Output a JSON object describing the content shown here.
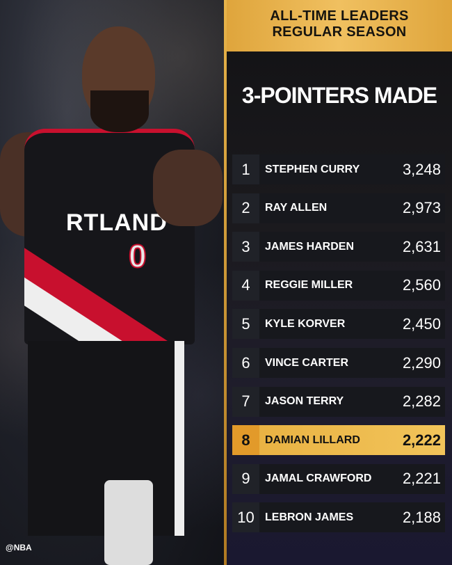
{
  "header": {
    "line1": "ALL-TIME LEADERS",
    "line2": "REGULAR SEASON"
  },
  "title": "3-POINTERS MADE",
  "photo": {
    "jersey_text": "RTLAND",
    "jersey_number": "0",
    "watermark": "@NBA"
  },
  "colors": {
    "gold": "#f0c060",
    "highlight": "#e8b040",
    "row_bg": "#17181d",
    "jersey_red": "#c8102e"
  },
  "leaders": [
    {
      "rank": "1",
      "name": "STEPHEN CURRY",
      "value": "3,248"
    },
    {
      "rank": "2",
      "name": "RAY ALLEN",
      "value": "2,973"
    },
    {
      "rank": "3",
      "name": "JAMES HARDEN",
      "value": "2,631"
    },
    {
      "rank": "4",
      "name": "REGGIE MILLER",
      "value": "2,560"
    },
    {
      "rank": "5",
      "name": "KYLE KORVER",
      "value": "2,450"
    },
    {
      "rank": "6",
      "name": "VINCE CARTER",
      "value": "2,290"
    },
    {
      "rank": "7",
      "name": "JASON TERRY",
      "value": "2,282"
    },
    {
      "rank": "8",
      "name": "DAMIAN LILLARD",
      "value": "2,222",
      "highlighted": true
    },
    {
      "rank": "9",
      "name": "JAMAL CRAWFORD",
      "value": "2,221"
    },
    {
      "rank": "10",
      "name": "LEBRON JAMES",
      "value": "2,188"
    }
  ]
}
